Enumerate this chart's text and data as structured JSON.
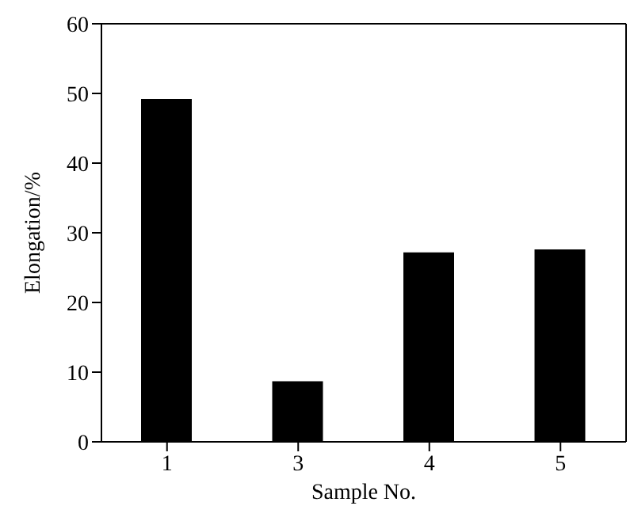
{
  "chart_data": {
    "type": "bar",
    "xlabel": "Sample No.",
    "ylabel": "Elongation/%",
    "categories": [
      "1",
      "3",
      "4",
      "5"
    ],
    "values": [
      49.2,
      8.7,
      27.2,
      27.6
    ],
    "color": "#000000",
    "ylim": [
      0,
      60
    ],
    "yticks": [
      0,
      10,
      20,
      30,
      40,
      50,
      60
    ],
    "grid": false,
    "legend": false
  }
}
